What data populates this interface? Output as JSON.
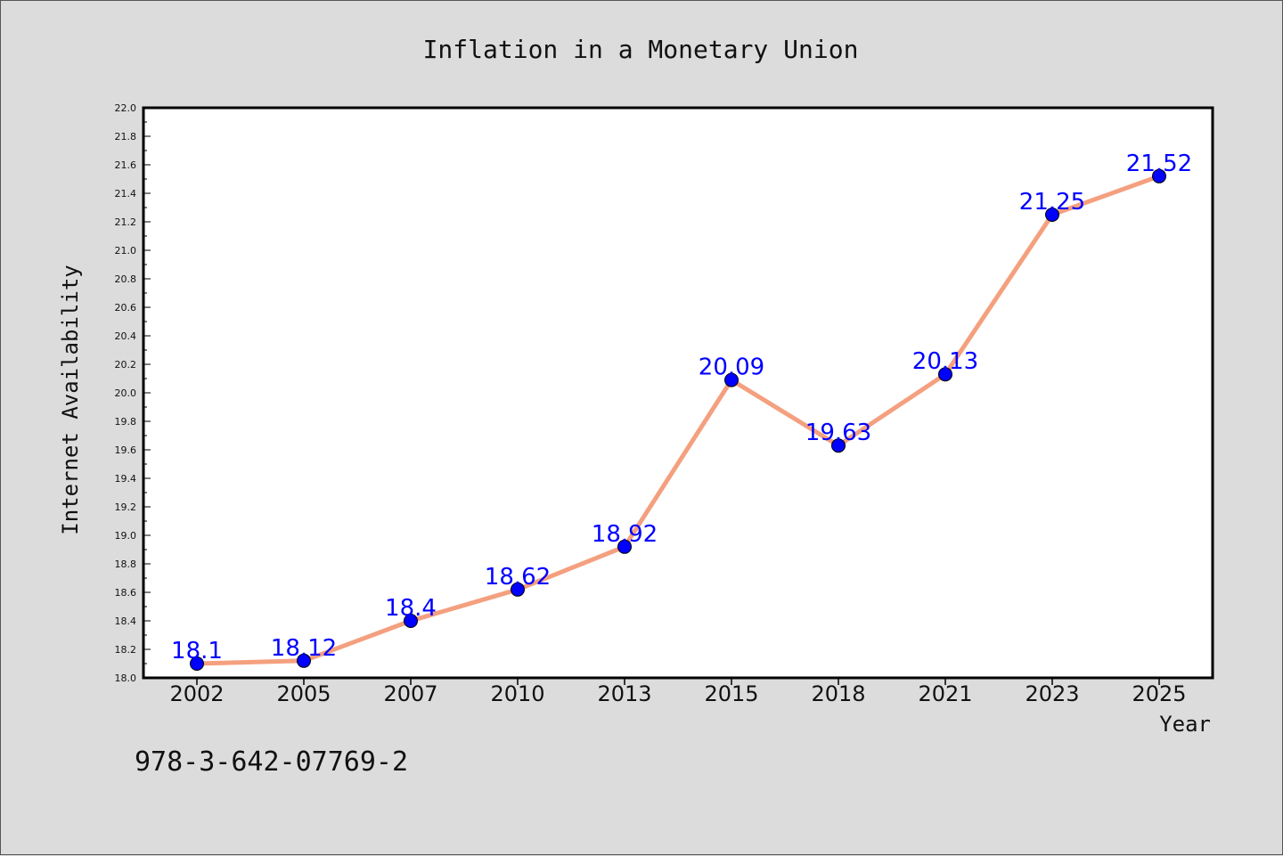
{
  "chart_data": {
    "type": "line",
    "title": "Inflation in a Monetary Union",
    "xlabel": "Year",
    "ylabel": "Internet Availability",
    "categories": [
      "2002",
      "2005",
      "2007",
      "2010",
      "2013",
      "2015",
      "2018",
      "2021",
      "2023",
      "2025"
    ],
    "series": [
      {
        "values": [
          18.1,
          18.12,
          18.4,
          18.62,
          18.92,
          20.09,
          19.63,
          20.13,
          21.25,
          21.52
        ],
        "data_labels": [
          "18.1",
          "18.12",
          "18.4",
          "18.62",
          "18.92",
          "20.09",
          "19.63",
          "20.13",
          "21.25",
          "21.52"
        ],
        "line_color": "#f4a07f",
        "marker_color": "#0000ff"
      }
    ],
    "ylim": [
      18.0,
      22.0
    ],
    "yticks": [
      "18.0",
      "18.2",
      "18.4",
      "18.6",
      "18.8",
      "19.0",
      "19.2",
      "19.4",
      "19.6",
      "19.8",
      "20.0",
      "20.2",
      "20.4",
      "20.6",
      "20.8",
      "21.0",
      "21.2",
      "21.4",
      "21.6",
      "21.8",
      "22.0"
    ],
    "grid": false,
    "legend": "none",
    "plot_background": "#ffffff",
    "figure_background": "#dcdcdc",
    "label_color": "#0000ff"
  },
  "footnote": "978-3-642-07769-2"
}
